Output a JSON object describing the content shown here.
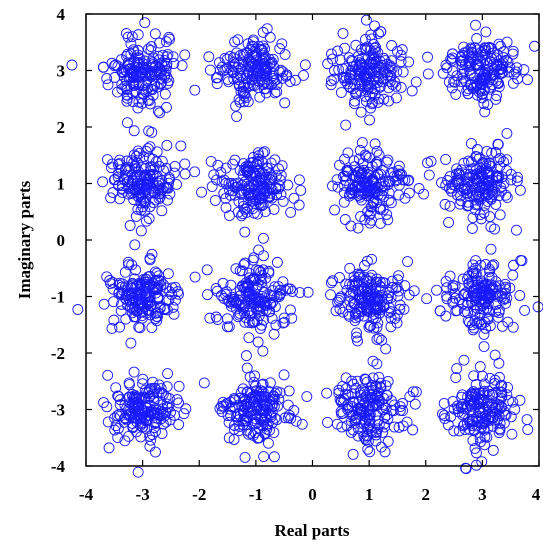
{
  "chart_data": {
    "type": "scatter",
    "title": "",
    "xlabel": "Real parts",
    "ylabel": "Imaginary parts",
    "xlim": [
      -4,
      4
    ],
    "ylim": [
      -4,
      4
    ],
    "xticks": [
      "-4",
      "-3",
      "-2",
      "-1",
      "0",
      "1",
      "2",
      "3",
      "4"
    ],
    "yticks": [
      "4",
      "3",
      "2",
      "1",
      "0",
      "-1",
      "-2",
      "-3",
      "-4"
    ],
    "grid": false,
    "marker": "circle-open",
    "marker_color": "#1a1aff",
    "series": [
      {
        "clusters": [
          {
            "center": [
              -3,
              3
            ],
            "spread": [
              0.42,
              0.42
            ]
          },
          {
            "center": [
              -1,
              3
            ],
            "spread": [
              0.42,
              0.42
            ]
          },
          {
            "center": [
              1,
              3
            ],
            "spread": [
              0.42,
              0.42
            ]
          },
          {
            "center": [
              3,
              3
            ],
            "spread": [
              0.42,
              0.42
            ]
          },
          {
            "center": [
              -3,
              1
            ],
            "spread": [
              0.42,
              0.42
            ]
          },
          {
            "center": [
              -1,
              1
            ],
            "spread": [
              0.42,
              0.42
            ]
          },
          {
            "center": [
              1,
              1
            ],
            "spread": [
              0.42,
              0.42
            ]
          },
          {
            "center": [
              3,
              1
            ],
            "spread": [
              0.42,
              0.42
            ]
          },
          {
            "center": [
              -3,
              -1
            ],
            "spread": [
              0.42,
              0.42
            ]
          },
          {
            "center": [
              -1,
              -1
            ],
            "spread": [
              0.42,
              0.42
            ]
          },
          {
            "center": [
              1,
              -1
            ],
            "spread": [
              0.42,
              0.42
            ]
          },
          {
            "center": [
              3,
              -1
            ],
            "spread": [
              0.42,
              0.42
            ]
          },
          {
            "center": [
              -3,
              -3
            ],
            "spread": [
              0.42,
              0.42
            ]
          },
          {
            "center": [
              -1,
              -3
            ],
            "spread": [
              0.42,
              0.42
            ]
          },
          {
            "center": [
              1,
              -3
            ],
            "spread": [
              0.42,
              0.42
            ]
          },
          {
            "center": [
              3,
              -3
            ],
            "spread": [
              0.42,
              0.42
            ]
          }
        ],
        "points_per_cluster": 170
      }
    ]
  }
}
